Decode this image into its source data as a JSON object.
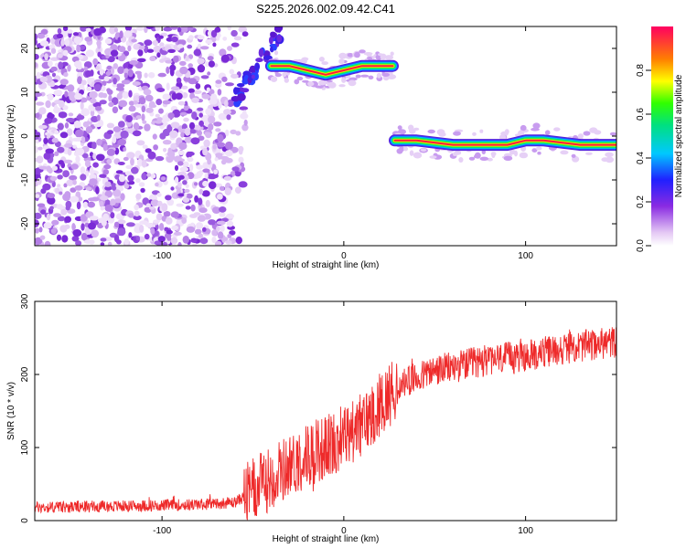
{
  "title": "S225.2026.002.09.42.C41",
  "chart_data": [
    {
      "type": "heatmap",
      "xlabel": "Height of straight line (km)",
      "ylabel": "Frequency (Hz)",
      "xlim": [
        -170,
        150
      ],
      "ylim": [
        -25,
        25
      ],
      "xticks": [
        -100,
        0,
        100
      ],
      "yticks": [
        -20,
        -10,
        0,
        10,
        20
      ],
      "colorbar": {
        "label": "Normalized spectral amplitude",
        "range": [
          0,
          1
        ],
        "ticks": [
          "0.0",
          "0.2",
          "0.4",
          "0.6",
          "0.8"
        ]
      },
      "ridges": [
        {
          "x": [
            -40,
            -30,
            -20,
            -10,
            0,
            10,
            20,
            27
          ],
          "y": [
            16,
            16,
            15,
            14,
            15,
            16,
            16,
            16
          ]
        },
        {
          "x": [
            28,
            40,
            60,
            80,
            90,
            100,
            110,
            130,
            150
          ],
          "y": [
            -1,
            -1,
            -2,
            -2,
            -2,
            -1,
            -1,
            -2,
            -2
          ]
        }
      ]
    },
    {
      "type": "line",
      "xlabel": "Height of straight line (km)",
      "ylabel": "SNR (10 * v/v)",
      "xlim": [
        -170,
        150
      ],
      "ylim": [
        0,
        300
      ],
      "xticks": [
        -100,
        0,
        100
      ],
      "yticks": [
        0,
        100,
        200,
        300
      ],
      "color": "#ee2a2a",
      "trend": {
        "x": [
          -170,
          -120,
          -80,
          -60,
          -50,
          -40,
          -30,
          -20,
          -10,
          0,
          10,
          20,
          30,
          50,
          80,
          100,
          120,
          150
        ],
        "y": [
          18,
          20,
          22,
          25,
          40,
          60,
          75,
          90,
          100,
          115,
          130,
          160,
          185,
          205,
          220,
          225,
          235,
          245
        ]
      }
    }
  ]
}
